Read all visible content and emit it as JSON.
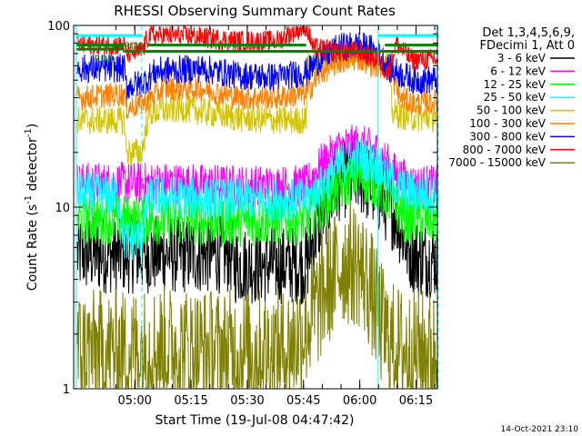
{
  "chart_data": {
    "type": "line",
    "title": "RHESSI Observing Summary Count Rates",
    "xlabel": "Start Time (19-Jul-08 04:47:42)",
    "ylabel": "Count Rate (s^-1 detector^-1)",
    "ylabel_base": "Count Rate (s",
    "ylabel_sup": "-1",
    "ylabel_tail": " detector",
    "ylabel_sup2": "-1",
    "ylabel_end": ")",
    "y_scale": "log",
    "ylim": [
      1,
      100
    ],
    "xlim_minutes": [
      -4,
      93
    ],
    "x_ticks": [
      {
        "minutes": 12.3,
        "label": "05:00"
      },
      {
        "minutes": 27.3,
        "label": "05:15"
      },
      {
        "minutes": 42.3,
        "label": "05:30"
      },
      {
        "minutes": 57.3,
        "label": "05:45"
      },
      {
        "minutes": 72.3,
        "label": "06:00"
      },
      {
        "minutes": 87.3,
        "label": "06:15"
      }
    ],
    "y_ticks": [
      {
        "value": 1,
        "label": "1"
      },
      {
        "value": 10,
        "label": "10"
      },
      {
        "value": 100,
        "label": "100"
      }
    ],
    "legend_header": [
      "Det 1,3,4,5,6,9,",
      "FDecimi 1, Att 0"
    ],
    "legend_position": "right",
    "footer_date": "14-Oct-2021 23:10",
    "annotations": [
      {
        "text": "RD0",
        "minutes": 9.5,
        "value": 78
      },
      {
        "text": "RD0",
        "minutes": 1.5,
        "value": 66
      }
    ],
    "vertical_lines": [
      {
        "minutes": -3.3,
        "style": "solid",
        "color": "#00ffff"
      },
      {
        "minutes": 14.2,
        "style": "dashed",
        "color": "#00ffff"
      },
      {
        "minutes": 77.2,
        "style": "solid",
        "color": "#00ffff"
      },
      {
        "minutes": 93.2,
        "style": "dashed",
        "color": "#00ffff"
      }
    ],
    "flag_lines": [
      {
        "name": "attenuator-flag",
        "color": "#00ffff",
        "value": 88,
        "segments": [
          [
            -3.3,
            14.2
          ],
          [
            77.2,
            93.2
          ]
        ]
      },
      {
        "name": "decimation-flag",
        "color": "#008000",
        "segments": [
          [
            -3.3,
            9.5,
            74
          ],
          [
            -3.3,
            9.5,
            78
          ],
          [
            9.5,
            93.2,
            72
          ],
          [
            16,
            58,
            78
          ],
          [
            79,
            93.2,
            78
          ]
        ]
      }
    ],
    "series": [
      {
        "name": "3 - 6 keV",
        "color": "#000000",
        "noise": 0.22,
        "points": [
          [
            -3,
            5.5
          ],
          [
            10,
            5.5
          ],
          [
            25,
            5.5
          ],
          [
            38,
            5.5
          ],
          [
            39,
            4.8
          ],
          [
            58,
            4.8
          ],
          [
            62,
            9
          ],
          [
            67,
            14
          ],
          [
            72,
            15
          ],
          [
            77,
            12
          ],
          [
            82,
            9
          ],
          [
            85,
            6
          ],
          [
            88,
            5.2
          ],
          [
            93,
            5.2
          ]
        ]
      },
      {
        "name": "6 - 12 keV",
        "color": "#ff00ff",
        "noise": 0.12,
        "points": [
          [
            -3,
            13.5
          ],
          [
            20,
            13.5
          ],
          [
            40,
            13
          ],
          [
            58,
            13
          ],
          [
            62,
            17
          ],
          [
            67,
            21
          ],
          [
            72,
            22
          ],
          [
            77,
            20
          ],
          [
            82,
            15
          ],
          [
            87,
            13
          ],
          [
            93,
            13
          ]
        ]
      },
      {
        "name": "12 - 25 keV",
        "color": "#00ff00",
        "noise": 0.14,
        "points": [
          [
            -3,
            8.5
          ],
          [
            20,
            8.5
          ],
          [
            40,
            8.3
          ],
          [
            58,
            8.5
          ],
          [
            62,
            10
          ],
          [
            67,
            13
          ],
          [
            72,
            15
          ],
          [
            77,
            13
          ],
          [
            82,
            10
          ],
          [
            85,
            8.5
          ],
          [
            93,
            8.5
          ]
        ]
      },
      {
        "name": "25 - 50 keV",
        "color": "#00ffff",
        "noise": 0.12,
        "points": [
          [
            -3,
            12
          ],
          [
            8,
            11.5
          ],
          [
            9.5,
            6.5
          ],
          [
            14,
            6.8
          ],
          [
            16,
            11.5
          ],
          [
            40,
            11
          ],
          [
            58,
            11
          ],
          [
            62,
            13
          ],
          [
            67,
            17
          ],
          [
            72,
            19
          ],
          [
            77,
            17
          ],
          [
            82,
            13
          ],
          [
            87,
            12
          ],
          [
            93,
            12
          ]
        ]
      },
      {
        "name": "50 - 100 keV",
        "color": "#d4c400",
        "noise": 0.08,
        "points": [
          [
            -3,
            30
          ],
          [
            9.5,
            30
          ],
          [
            10,
            20
          ],
          [
            14.2,
            20
          ],
          [
            16,
            33
          ],
          [
            25,
            35
          ],
          [
            40,
            31
          ],
          [
            50,
            30
          ],
          [
            58,
            30
          ],
          [
            58.2,
            60
          ],
          [
            66,
            68
          ],
          [
            72,
            72
          ],
          [
            77,
            68
          ],
          [
            80,
            62
          ],
          [
            81,
            33
          ],
          [
            87,
            31
          ],
          [
            93,
            31
          ]
        ]
      },
      {
        "name": "100 - 300 keV",
        "color": "#ff8000",
        "noise": 0.07,
        "points": [
          [
            -3,
            40
          ],
          [
            9.5,
            42
          ],
          [
            10,
            35
          ],
          [
            14.2,
            37
          ],
          [
            20,
            45
          ],
          [
            30,
            45
          ],
          [
            40,
            40
          ],
          [
            50,
            40
          ],
          [
            58,
            42
          ],
          [
            62,
            55
          ],
          [
            67,
            63
          ],
          [
            72,
            66
          ],
          [
            77,
            60
          ],
          [
            80,
            58
          ],
          [
            83,
            40
          ],
          [
            87,
            37
          ],
          [
            93,
            38
          ]
        ]
      },
      {
        "name": "300 - 800 keV",
        "color": "#0000ff",
        "noise": 0.08,
        "points": [
          [
            -3,
            58
          ],
          [
            9.5,
            58
          ],
          [
            10,
            46
          ],
          [
            14.2,
            48
          ],
          [
            18,
            56
          ],
          [
            30,
            58
          ],
          [
            40,
            53
          ],
          [
            50,
            52
          ],
          [
            58,
            55
          ],
          [
            62,
            66
          ],
          [
            67,
            76
          ],
          [
            72,
            78
          ],
          [
            77,
            72
          ],
          [
            80,
            58
          ],
          [
            85,
            52
          ],
          [
            87,
            50
          ],
          [
            93,
            50
          ]
        ]
      },
      {
        "name": "800 - 7000 keV",
        "color": "#ff0000",
        "noise": 0.06,
        "points": [
          [
            -3,
            78
          ],
          [
            9.5,
            78
          ],
          [
            10,
            70
          ],
          [
            14.2,
            72
          ],
          [
            16,
            88
          ],
          [
            25,
            88
          ],
          [
            40,
            82
          ],
          [
            50,
            82
          ],
          [
            58,
            100
          ],
          [
            60,
            75
          ],
          [
            67,
            72
          ],
          [
            72,
            72
          ],
          [
            77,
            65
          ],
          [
            80,
            55
          ],
          [
            82,
            80
          ],
          [
            86,
            65
          ],
          [
            93,
            65
          ]
        ]
      },
      {
        "name": "7000 - 15000 keV",
        "color": "#808000",
        "noise": 0.35,
        "points": [
          [
            -3,
            1.6
          ],
          [
            10,
            1.6
          ],
          [
            20,
            1.7
          ],
          [
            35,
            1.6
          ],
          [
            52,
            1.6
          ],
          [
            56,
            1.9
          ],
          [
            60,
            2.6
          ],
          [
            64,
            3.8
          ],
          [
            68,
            5.0
          ],
          [
            72,
            4.8
          ],
          [
            75,
            3.6
          ],
          [
            77,
            2.6
          ],
          [
            80,
            1.8
          ],
          [
            85,
            1.6
          ],
          [
            93,
            1.6
          ]
        ]
      }
    ]
  }
}
